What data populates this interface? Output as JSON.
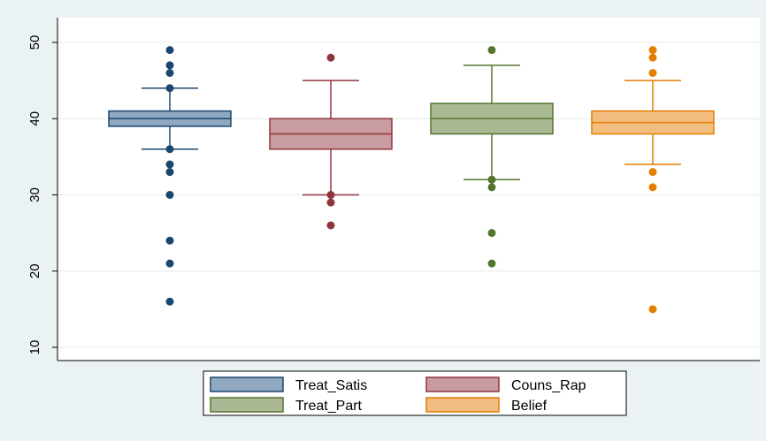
{
  "chart_data": {
    "type": "box",
    "title": "",
    "xlabel": "",
    "ylabel": "",
    "ylim": [
      8,
      52
    ],
    "yticks": [
      10,
      20,
      30,
      40,
      50
    ],
    "grid": true,
    "legend_position": "bottom",
    "series": [
      {
        "name": "Treat_Satis",
        "color": "#1a476f",
        "fill": "#90a8c0",
        "whisker_low": 36,
        "q1": 39,
        "median": 40,
        "q3": 41,
        "whisker_high": 44,
        "outliers": [
          49,
          47,
          46,
          44,
          36,
          34,
          33,
          30,
          24,
          21,
          16
        ]
      },
      {
        "name": "Couns_Rap",
        "color": "#90353b",
        "fill": "#c89ca0",
        "whisker_low": 30,
        "q1": 36,
        "median": 38,
        "q3": 40,
        "whisker_high": 45,
        "outliers": [
          48,
          30,
          29,
          26
        ]
      },
      {
        "name": "Treat_Part",
        "color": "#55752f",
        "fill": "#aab894",
        "whisker_low": 32,
        "q1": 38,
        "median": 40,
        "q3": 42,
        "whisker_high": 47,
        "outliers": [
          49,
          32,
          31,
          25,
          21
        ]
      },
      {
        "name": "Belief",
        "color": "#e37e00",
        "fill": "#f2bd80",
        "whisker_low": 34,
        "q1": 38,
        "median": 39.5,
        "q3": 41,
        "whisker_high": 45,
        "outliers": [
          49,
          48,
          46,
          33,
          31,
          15
        ]
      }
    ]
  }
}
